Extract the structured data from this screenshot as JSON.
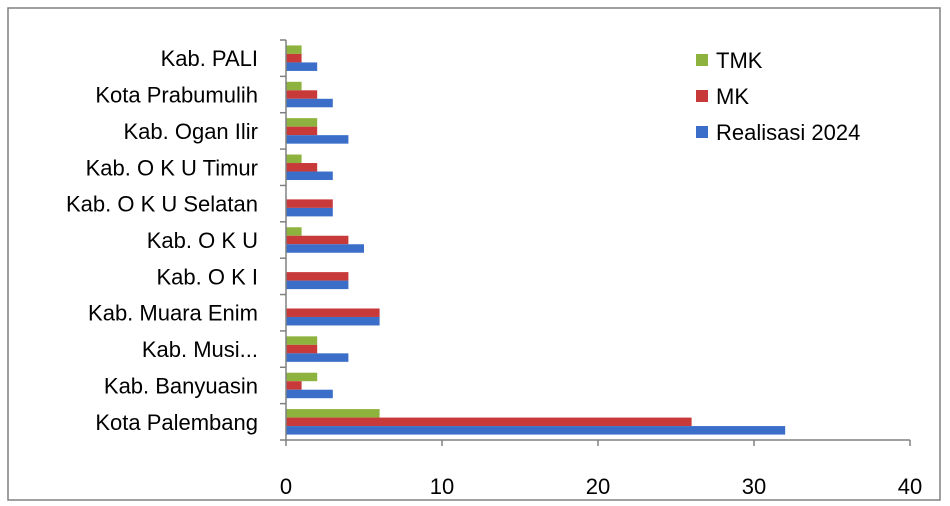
{
  "chart_data": {
    "type": "bar",
    "orientation": "horizontal",
    "categories": [
      "Kota Palembang",
      "Kab. Banyuasin",
      "Kab. Musi...",
      "Kab. Muara Enim",
      "Kab. O K I",
      "Kab. O K U",
      "Kab. O K U Selatan",
      "Kab. O K U Timur",
      "Kab. Ogan Ilir",
      "Kota Prabumulih",
      "Kab. PALI"
    ],
    "series": [
      {
        "name": "Realisasi 2024",
        "color": "#3A6EC8",
        "values": [
          32,
          3,
          4,
          6,
          4,
          5,
          3,
          3,
          4,
          3,
          2
        ]
      },
      {
        "name": "MK",
        "color": "#C83A3A",
        "values": [
          26,
          1,
          2,
          6,
          4,
          4,
          3,
          2,
          2,
          2,
          1
        ]
      },
      {
        "name": "TMK",
        "color": "#8DB33E",
        "values": [
          6,
          2,
          2,
          0,
          0,
          1,
          0,
          1,
          2,
          1,
          1
        ]
      }
    ],
    "legend_order": [
      "TMK",
      "MK",
      "Realisasi 2024"
    ],
    "legend_position": "top-right",
    "xlim": [
      0,
      40
    ],
    "xticks": [
      "0",
      "10",
      "20",
      "30",
      "40"
    ],
    "title": "",
    "xlabel": "",
    "ylabel": "",
    "grid": false
  }
}
